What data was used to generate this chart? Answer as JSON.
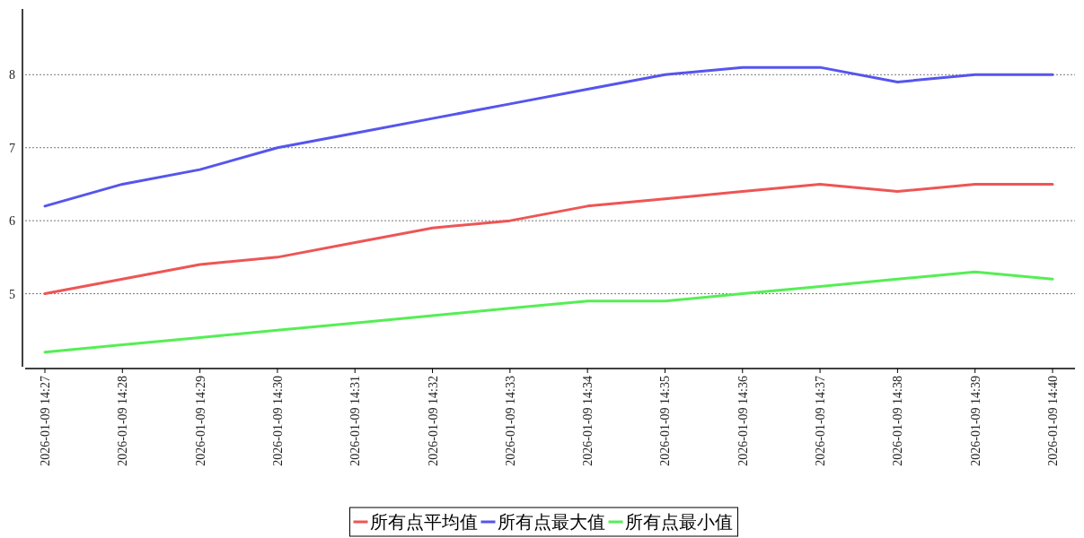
{
  "chart_data": {
    "type": "line",
    "categories": [
      "2026-01-09 14:27",
      "2026-01-09 14:28",
      "2026-01-09 14:29",
      "2026-01-09 14:30",
      "2026-01-09 14:31",
      "2026-01-09 14:32",
      "2026-01-09 14:33",
      "2026-01-09 14:34",
      "2026-01-09 14:35",
      "2026-01-09 14:36",
      "2026-01-09 14:37",
      "2026-01-09 14:38",
      "2026-01-09 14:39",
      "2026-01-09 14:40"
    ],
    "series": [
      {
        "name": "所有点平均值",
        "color": "#ee5555",
        "values": [
          5.0,
          5.2,
          5.4,
          5.5,
          5.7,
          5.9,
          6.0,
          6.2,
          6.3,
          6.4,
          6.5,
          6.4,
          6.5,
          6.5
        ]
      },
      {
        "name": "所有点最大值",
        "color": "#5555ee",
        "values": [
          6.2,
          6.5,
          6.7,
          7.0,
          7.2,
          7.4,
          7.6,
          7.8,
          8.0,
          8.1,
          8.1,
          7.9,
          8.0,
          8.0
        ]
      },
      {
        "name": "所有点最小值",
        "color": "#55ee55",
        "values": [
          4.2,
          4.3,
          4.4,
          4.5,
          4.6,
          4.7,
          4.8,
          4.9,
          4.9,
          5.0,
          5.1,
          5.2,
          5.3,
          5.2
        ]
      }
    ],
    "ylim": [
      4,
      8.9
    ],
    "yticks": [
      5,
      6,
      7,
      8
    ],
    "grid": "y",
    "legend": "bottom"
  }
}
